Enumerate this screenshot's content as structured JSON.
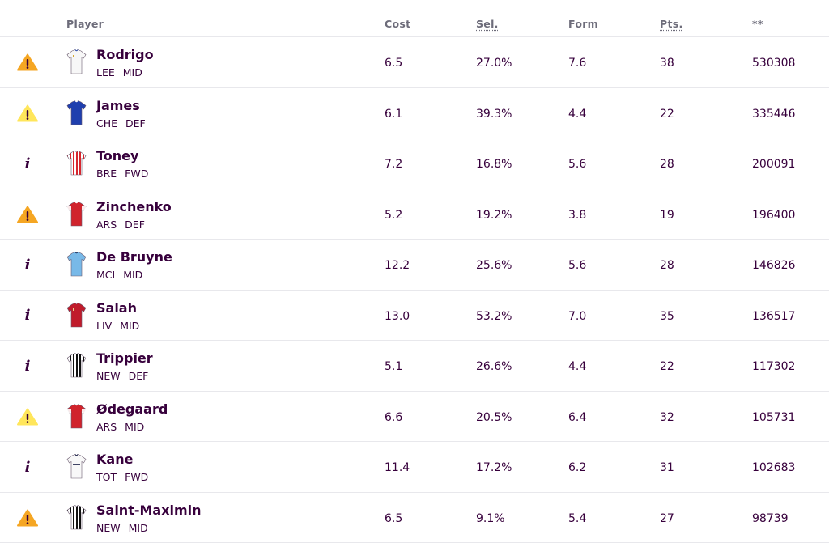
{
  "header": {
    "player": "Player",
    "cost": "Cost",
    "sel": "Sel.",
    "form": "Form",
    "pts": "Pts.",
    "transfers": "**"
  },
  "colors": {
    "text": "#37003c",
    "header_text": "#6d6c7a",
    "warning_orange": "#f5a623",
    "warning_yellow": "#ffe65b",
    "divider": "#e8e8ec"
  },
  "players": [
    {
      "status_icon": "warning-orange-icon",
      "name": "Rodrigo",
      "team": "LEE",
      "position": "MID",
      "cost": "6.5",
      "sel": "27.0%",
      "form": "7.6",
      "pts": "38",
      "transfers": "530308",
      "shirt": "leeds-white"
    },
    {
      "status_icon": "warning-yellow-icon",
      "name": "James",
      "team": "CHE",
      "position": "DEF",
      "cost": "6.1",
      "sel": "39.3%",
      "form": "4.4",
      "pts": "22",
      "transfers": "335446",
      "shirt": "chelsea-blue"
    },
    {
      "status_icon": "info-icon",
      "name": "Toney",
      "team": "BRE",
      "position": "FWD",
      "cost": "7.2",
      "sel": "16.8%",
      "form": "5.6",
      "pts": "28",
      "transfers": "200091",
      "shirt": "brentford-stripes"
    },
    {
      "status_icon": "warning-orange-icon",
      "name": "Zinchenko",
      "team": "ARS",
      "position": "DEF",
      "cost": "5.2",
      "sel": "19.2%",
      "form": "3.8",
      "pts": "19",
      "transfers": "196400",
      "shirt": "arsenal-red"
    },
    {
      "status_icon": "info-icon",
      "name": "De Bruyne",
      "team": "MCI",
      "position": "MID",
      "cost": "12.2",
      "sel": "25.6%",
      "form": "5.6",
      "pts": "28",
      "transfers": "146826",
      "shirt": "mancity-skyblue"
    },
    {
      "status_icon": "info-icon",
      "name": "Salah",
      "team": "LIV",
      "position": "MID",
      "cost": "13.0",
      "sel": "53.2%",
      "form": "7.0",
      "pts": "35",
      "transfers": "136517",
      "shirt": "liverpool-red"
    },
    {
      "status_icon": "info-icon",
      "name": "Trippier",
      "team": "NEW",
      "position": "DEF",
      "cost": "5.1",
      "sel": "26.6%",
      "form": "4.4",
      "pts": "22",
      "transfers": "117302",
      "shirt": "newcastle-stripes"
    },
    {
      "status_icon": "warning-yellow-icon",
      "name": "Ødegaard",
      "team": "ARS",
      "position": "MID",
      "cost": "6.6",
      "sel": "20.5%",
      "form": "6.4",
      "pts": "32",
      "transfers": "105731",
      "shirt": "arsenal-red"
    },
    {
      "status_icon": "info-icon",
      "name": "Kane",
      "team": "TOT",
      "position": "FWD",
      "cost": "11.4",
      "sel": "17.2%",
      "form": "6.2",
      "pts": "31",
      "transfers": "102683",
      "shirt": "spurs-white"
    },
    {
      "status_icon": "warning-orange-icon",
      "name": "Saint-Maximin",
      "team": "NEW",
      "position": "MID",
      "cost": "6.5",
      "sel": "9.1%",
      "form": "5.4",
      "pts": "27",
      "transfers": "98739",
      "shirt": "newcastle-stripes"
    }
  ]
}
